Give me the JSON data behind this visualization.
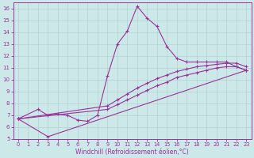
{
  "xlabel": "Windchill (Refroidissement éolien,°C)",
  "background_color": "#cce8e8",
  "line_color": "#993399",
  "xlim": [
    -0.5,
    23.5
  ],
  "ylim": [
    5,
    16.5
  ],
  "xticks": [
    0,
    1,
    2,
    3,
    4,
    5,
    6,
    7,
    8,
    9,
    10,
    11,
    12,
    13,
    14,
    15,
    16,
    17,
    18,
    19,
    20,
    21,
    22,
    23
  ],
  "yticks": [
    5,
    6,
    7,
    8,
    9,
    10,
    11,
    12,
    13,
    14,
    15,
    16
  ],
  "series": [
    {
      "x": [
        0,
        2,
        3,
        4,
        5,
        6,
        7,
        8,
        9,
        10,
        11,
        12,
        13,
        14,
        15,
        16,
        17,
        18,
        19,
        20,
        21,
        22,
        23
      ],
      "y": [
        6.7,
        7.5,
        7.0,
        7.1,
        7.0,
        6.6,
        6.5,
        7.0,
        10.3,
        13.0,
        14.1,
        16.2,
        15.2,
        14.5,
        12.8,
        11.8,
        11.5,
        11.5,
        11.5,
        11.5,
        11.5,
        11.1,
        10.8
      ]
    },
    {
      "x": [
        0,
        9,
        10,
        11,
        12,
        13,
        14,
        15,
        16,
        17,
        18,
        19,
        20,
        21,
        22,
        23
      ],
      "y": [
        6.7,
        7.8,
        8.3,
        8.8,
        9.3,
        9.7,
        10.1,
        10.4,
        10.7,
        10.9,
        11.1,
        11.2,
        11.3,
        11.4,
        11.4,
        11.1
      ]
    },
    {
      "x": [
        0,
        9,
        10,
        11,
        12,
        13,
        14,
        15,
        16,
        17,
        18,
        19,
        20,
        21,
        22,
        23
      ],
      "y": [
        6.7,
        7.5,
        7.9,
        8.3,
        8.7,
        9.1,
        9.5,
        9.8,
        10.2,
        10.4,
        10.6,
        10.8,
        11.0,
        11.1,
        11.1,
        10.8
      ]
    },
    {
      "x": [
        0,
        3,
        23
      ],
      "y": [
        6.7,
        5.2,
        10.8
      ]
    }
  ]
}
